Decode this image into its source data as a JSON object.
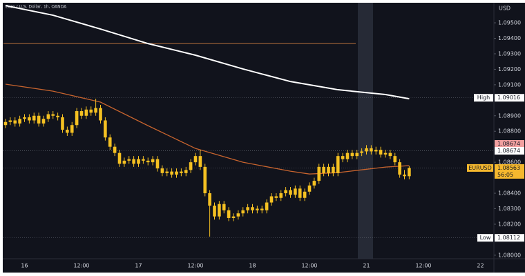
{
  "chart_data": {
    "type": "candlestick",
    "title": "Euro / U.S. Dollar, 1h, OANDA",
    "currency": "USD",
    "color": "#f5c122",
    "categories": [
      null,
      null,
      null,
      null,
      "16",
      null,
      null,
      null,
      null,
      null,
      null,
      null,
      null,
      null,
      null,
      null,
      "12:00",
      null,
      null,
      null,
      null,
      null,
      null,
      null,
      null,
      null,
      null,
      null,
      "17",
      null,
      null,
      null,
      null,
      null,
      null,
      null,
      null,
      null,
      null,
      null,
      "12:00",
      null,
      null,
      null,
      null,
      null,
      null,
      null,
      null,
      null,
      null,
      null,
      "18",
      null,
      null,
      null,
      null,
      null,
      null,
      null,
      null,
      null,
      null,
      null,
      "12:00",
      null,
      null,
      null,
      null,
      null,
      null,
      null,
      null,
      null,
      null,
      null,
      "21",
      null,
      null,
      null,
      null,
      null,
      null,
      null,
      null,
      null,
      null,
      null,
      "12:00",
      null,
      null,
      null,
      null,
      null,
      null,
      null,
      null,
      null,
      null,
      null,
      "22"
    ],
    "open": [
      1.0884,
      1.0886,
      1.0887,
      1.0885,
      1.0888,
      1.0889,
      1.0887,
      1.089,
      1.0885,
      1.0888,
      1.0891,
      1.089,
      1.0889,
      1.0881,
      1.0879,
      1.0884,
      1.0893,
      1.089,
      1.0894,
      1.0892,
      1.0895,
      1.0887,
      1.0876,
      1.087,
      1.0866,
      1.0859,
      1.0861,
      1.0862,
      1.0859,
      1.0862,
      1.0861,
      1.086,
      1.0862,
      1.0856,
      1.0853,
      1.0854,
      1.0852,
      1.0854,
      1.0853,
      1.0855,
      1.086,
      1.0864,
      1.0857,
      1.084,
      1.0832,
      1.0825,
      1.0833,
      1.0829,
      1.0824,
      1.0825,
      1.0827,
      1.0829,
      1.0831,
      1.0829,
      1.083,
      1.0829,
      1.0834,
      1.0838,
      1.0837,
      1.084,
      1.0842,
      1.0839,
      1.0843,
      1.0837,
      1.0841,
      1.0845,
      1.0848,
      1.0857,
      1.0853,
      1.0857,
      1.0853,
      1.0864,
      1.0862,
      1.0866,
      1.0864,
      1.0866,
      1.0867,
      1.0869,
      1.0867,
      1.0868,
      1.0865,
      1.0866,
      1.0864,
      1.086,
      1.0852,
      1.0851,
      null,
      null,
      null,
      null,
      null,
      null,
      null,
      null,
      null,
      null,
      null,
      null,
      null,
      null,
      null
    ],
    "high": [
      1.0888,
      1.0889,
      1.0889,
      1.089,
      1.0891,
      1.0891,
      1.0892,
      1.0892,
      1.089,
      1.0893,
      1.0893,
      1.0892,
      1.0891,
      1.0883,
      1.0886,
      1.0895,
      1.0895,
      1.0896,
      1.0896,
      1.0901,
      1.0897,
      1.0889,
      1.0878,
      1.0872,
      1.0868,
      1.0863,
      1.0864,
      1.0864,
      1.0864,
      1.0864,
      1.0863,
      1.0864,
      1.0864,
      1.0858,
      1.0856,
      1.0856,
      1.0856,
      1.0856,
      1.0857,
      1.0862,
      1.0866,
      1.0868,
      1.0859,
      1.0842,
      1.0834,
      1.0835,
      1.0835,
      1.0831,
      1.0827,
      1.0829,
      1.0831,
      1.0833,
      1.0833,
      1.0832,
      1.0832,
      1.0836,
      1.084,
      1.084,
      1.0842,
      1.0844,
      1.0844,
      1.0845,
      1.0845,
      1.0843,
      1.0847,
      1.085,
      1.0859,
      1.0859,
      1.0859,
      1.0859,
      1.0866,
      1.0866,
      1.0868,
      1.0868,
      1.0868,
      1.0869,
      1.0871,
      1.0871,
      1.087,
      1.087,
      1.0868,
      1.0868,
      1.0866,
      1.0862,
      1.0855,
      1.08575,
      null,
      null,
      null,
      null,
      null,
      null,
      null,
      null,
      null,
      null,
      null,
      null,
      null,
      null,
      null
    ],
    "low": [
      1.0882,
      1.0884,
      1.0883,
      1.0883,
      1.0886,
      1.0885,
      1.0885,
      1.0883,
      1.0883,
      1.0886,
      1.0888,
      1.0887,
      1.0879,
      1.0877,
      1.0877,
      1.0882,
      1.0888,
      1.0888,
      1.089,
      1.089,
      1.0885,
      1.0874,
      1.0868,
      1.0864,
      1.0857,
      1.0857,
      1.0859,
      1.0857,
      1.0857,
      1.0859,
      1.0858,
      1.0858,
      1.0854,
      1.0851,
      1.0851,
      1.085,
      1.085,
      1.0851,
      1.0851,
      1.0853,
      1.0858,
      1.0855,
      1.0838,
      1.0812,
      1.0823,
      1.0823,
      1.0827,
      1.0822,
      1.0822,
      1.0823,
      1.0825,
      1.0827,
      1.0827,
      1.0827,
      1.0827,
      1.0827,
      1.0832,
      1.0835,
      1.0835,
      1.0838,
      1.0837,
      1.0837,
      1.0835,
      1.0835,
      1.0839,
      1.0843,
      1.0846,
      1.0851,
      1.0851,
      1.0851,
      1.0851,
      1.086,
      1.086,
      1.0862,
      1.0862,
      1.0864,
      1.0865,
      1.0865,
      1.0865,
      1.0863,
      1.0863,
      1.0862,
      1.0858,
      1.085,
      1.0849,
      1.0849,
      null,
      null,
      null,
      null,
      null,
      null,
      null,
      null,
      null,
      null,
      null,
      null,
      null,
      null,
      null
    ],
    "close": [
      1.0886,
      1.0887,
      1.0885,
      1.0888,
      1.0889,
      1.0887,
      1.089,
      1.0885,
      1.0888,
      1.0891,
      1.089,
      1.0889,
      1.0881,
      1.0879,
      1.0884,
      1.0893,
      1.089,
      1.0894,
      1.0892,
      1.0895,
      1.0887,
      1.0876,
      1.087,
      1.0866,
      1.0859,
      1.0861,
      1.0862,
      1.0859,
      1.0862,
      1.0861,
      1.086,
      1.0862,
      1.0856,
      1.0853,
      1.0854,
      1.0852,
      1.0854,
      1.0853,
      1.0855,
      1.086,
      1.0864,
      1.0857,
      1.084,
      1.0832,
      1.0825,
      1.0833,
      1.0829,
      1.0824,
      1.0825,
      1.0827,
      1.0829,
      1.0831,
      1.0829,
      1.083,
      1.0829,
      1.0834,
      1.0838,
      1.0837,
      1.084,
      1.0842,
      1.0839,
      1.0843,
      1.0837,
      1.0841,
      1.0845,
      1.0848,
      1.0857,
      1.0853,
      1.0857,
      1.0853,
      1.0864,
      1.0862,
      1.0866,
      1.0864,
      1.0866,
      1.0867,
      1.0869,
      1.0867,
      1.0868,
      1.0865,
      1.0866,
      1.0864,
      1.086,
      1.0852,
      1.0851,
      1.08563,
      null,
      null,
      null,
      null,
      null,
      null,
      null,
      null,
      null,
      null,
      null,
      null,
      null,
      null,
      null
    ],
    "ylim": [
      1.07977,
      1.09625
    ],
    "yticks": [
      {
        "value": 1.095,
        "label": "1.09500"
      },
      {
        "value": 1.094,
        "label": "1.09400"
      },
      {
        "value": 1.093,
        "label": "1.09300"
      },
      {
        "value": 1.092,
        "label": "1.09200"
      },
      {
        "value": 1.091,
        "label": "1.09100"
      },
      {
        "value": 1.089,
        "label": "1.08900"
      },
      {
        "value": 1.088,
        "label": "1.08800"
      },
      {
        "value": 1.086,
        "label": "1.08600"
      },
      {
        "value": 1.084,
        "label": "1.08400"
      },
      {
        "value": 1.083,
        "label": "1.08300"
      },
      {
        "value": 1.082,
        "label": "1.08200"
      },
      {
        "value": 1.08,
        "label": "1.08000"
      }
    ],
    "moving_averages": [
      {
        "color": "#ffffff",
        "x": [
          0,
          10,
          20,
          30,
          40,
          50,
          60,
          70,
          80,
          85
        ],
        "values": [
          1.09611,
          1.09549,
          1.0946,
          1.09366,
          1.09291,
          1.09202,
          1.09121,
          1.09068,
          1.09037,
          1.0901
        ]
      },
      {
        "color": "#c8642e",
        "x": [
          0,
          10,
          20,
          30,
          40,
          50,
          60,
          64,
          70,
          80,
          85
        ],
        "values": [
          1.09104,
          1.09059,
          1.08988,
          1.08836,
          1.08689,
          1.086,
          1.08542,
          1.08524,
          1.08533,
          1.08569,
          1.08578
        ]
      }
    ],
    "levels": [
      {
        "value": 1.09366,
        "color": "#b8703c"
      }
    ],
    "badges": [
      {
        "label": "High",
        "value": 1.09016,
        "color": "#ffffff"
      },
      {
        "value": 1.08674,
        "color": "#f2a0a0"
      },
      {
        "value": 1.08674,
        "color": "#ffffff"
      },
      {
        "label": "EURUSD",
        "value": 1.08563,
        "countdown": "56:05",
        "color": "#f5b82e"
      },
      {
        "label": "Low",
        "value": 1.08112,
        "color": "#ffffff"
      }
    ]
  }
}
